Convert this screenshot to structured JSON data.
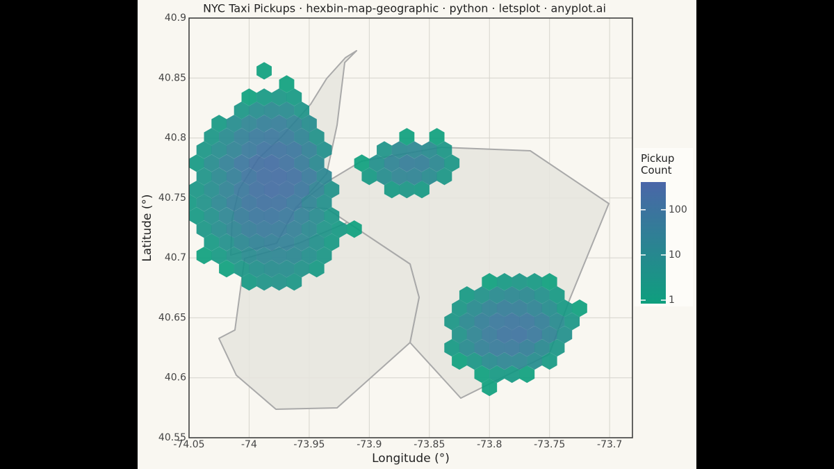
{
  "chart_data": {
    "type": "hexbin",
    "title": "NYC Taxi Pickups · hexbin-map-geographic · python · letsplot · anyplot.ai",
    "x_label": "Longitude (°)",
    "y_label": "Latitude (°)",
    "legend_title": "Pickup Count",
    "xlim": [
      -74.05,
      -73.681
    ],
    "ylim": [
      40.55,
      40.9
    ],
    "xticks": [
      -74.05,
      -74,
      -73.95,
      -73.9,
      -73.85,
      -73.8,
      -73.75,
      -73.7
    ],
    "yticks": [
      40.55,
      40.6,
      40.65,
      40.7,
      40.75,
      40.8,
      40.85,
      40.9
    ],
    "grid": true,
    "color_scale": "log",
    "clim": [
      1,
      410
    ],
    "colormap": [
      "#0e9f7e",
      "#4a66a8"
    ],
    "cticks": [
      1,
      10,
      100
    ],
    "rows": [
      {
        "y": 40.592,
        "x": [
          -73.8
        ],
        "values": [
          1
        ]
      },
      {
        "y": 40.603,
        "x": [
          -73.80625,
          -73.79375,
          -73.78125,
          -73.76875
        ],
        "values": [
          1,
          2,
          2,
          1
        ]
      },
      {
        "y": 40.614,
        "x": [
          -73.825,
          -73.8125,
          -73.8,
          -73.7875,
          -73.775,
          -73.7625,
          -73.75
        ],
        "values": [
          1,
          3,
          10,
          18,
          16,
          8,
          2
        ]
      },
      {
        "y": 40.625,
        "x": [
          -73.83125,
          -73.81875,
          -73.80625,
          -73.79375,
          -73.78125,
          -73.76875,
          -73.75625,
          -73.74375
        ],
        "values": [
          2,
          10,
          30,
          55,
          60,
          35,
          12,
          3
        ]
      },
      {
        "y": 40.636,
        "x": [
          -73.825,
          -73.8125,
          -73.8,
          -73.7875,
          -73.775,
          -73.7625,
          -73.75,
          -73.7375
        ],
        "values": [
          5,
          20,
          55,
          100,
          110,
          70,
          25,
          6
        ]
      },
      {
        "y": 40.647,
        "x": [
          -73.83125,
          -73.81875,
          -73.80625,
          -73.79375,
          -73.78125,
          -73.76875,
          -73.75625,
          -73.74375,
          -73.73125
        ],
        "values": [
          3,
          12,
          35,
          70,
          90,
          75,
          35,
          10,
          3
        ]
      },
      {
        "y": 40.658,
        "x": [
          -73.825,
          -73.8125,
          -73.8,
          -73.7875,
          -73.775,
          -73.7625,
          -73.75,
          -73.7375,
          -73.725
        ],
        "values": [
          3,
          10,
          25,
          40,
          38,
          22,
          8,
          2,
          1
        ]
      },
      {
        "y": 40.669,
        "x": [
          -73.81875,
          -73.80625,
          -73.79375,
          -73.78125,
          -73.76875,
          -73.75625,
          -73.74375
        ],
        "values": [
          2,
          5,
          10,
          14,
          12,
          6,
          2
        ]
      },
      {
        "y": 40.68,
        "x": [
          -74.0,
          -73.9875,
          -73.975,
          -73.9625,
          -73.8,
          -73.7875,
          -73.775,
          -73.7625,
          -73.75
        ],
        "values": [
          2,
          4,
          5,
          3,
          1,
          2,
          3,
          2,
          1
        ]
      },
      {
        "y": 40.691,
        "x": [
          -74.01875,
          -74.00625,
          -73.99375,
          -73.98125,
          -73.96875,
          -73.95625,
          -73.94375
        ],
        "values": [
          1,
          3,
          6,
          9,
          8,
          5,
          2
        ]
      },
      {
        "y": 40.702,
        "x": [
          -74.0375,
          -74.025,
          -74.0125,
          -74.0,
          -73.9875,
          -73.975,
          -73.9625,
          -73.95,
          -73.9375
        ],
        "values": [
          1,
          2,
          5,
          10,
          16,
          18,
          14,
          7,
          3
        ]
      },
      {
        "y": 40.713,
        "x": [
          -74.03125,
          -74.01875,
          -74.00625,
          -73.99375,
          -73.98125,
          -73.96875,
          -73.95625,
          -73.94375,
          -73.93125
        ],
        "values": [
          2,
          6,
          14,
          26,
          34,
          30,
          16,
          6,
          2
        ]
      },
      {
        "y": 40.724,
        "x": [
          -74.0375,
          -74.025,
          -74.0125,
          -74.0,
          -73.9875,
          -73.975,
          -73.9625,
          -73.95,
          -73.9375,
          -73.925,
          -73.9125
        ],
        "values": [
          3,
          8,
          20,
          40,
          60,
          55,
          32,
          12,
          4,
          2,
          1
        ]
      },
      {
        "y": 40.735,
        "x": [
          -74.04375,
          -74.03125,
          -74.01875,
          -74.00625,
          -73.99375,
          -73.98125,
          -73.96875,
          -73.95625,
          -73.94375,
          -73.93125
        ],
        "values": [
          2,
          6,
          18,
          45,
          80,
          95,
          70,
          30,
          10,
          3
        ]
      },
      {
        "y": 40.746,
        "x": [
          -74.05,
          -74.0375,
          -74.025,
          -74.0125,
          -74.0,
          -73.9875,
          -73.975,
          -73.9625,
          -73.95,
          -73.9375
        ],
        "values": [
          2,
          5,
          15,
          40,
          90,
          140,
          130,
          70,
          22,
          6
        ]
      },
      {
        "y": 40.757,
        "x": [
          -74.04375,
          -74.03125,
          -74.01875,
          -74.00625,
          -73.99375,
          -73.98125,
          -73.96875,
          -73.95625,
          -73.94375,
          -73.93125,
          -73.88125,
          -73.86875,
          -73.85625
        ],
        "values": [
          3,
          8,
          25,
          70,
          150,
          200,
          160,
          80,
          25,
          5,
          2,
          3,
          2
        ]
      },
      {
        "y": 40.768,
        "x": [
          -74.0375,
          -74.025,
          -74.0125,
          -74.0,
          -73.9875,
          -73.975,
          -73.9625,
          -73.95,
          -73.9375,
          -73.9,
          -73.8875,
          -73.875,
          -73.8625,
          -73.85,
          -73.8375
        ],
        "values": [
          4,
          12,
          35,
          100,
          180,
          210,
          150,
          60,
          15,
          2,
          8,
          20,
          22,
          10,
          3
        ]
      },
      {
        "y": 40.779,
        "x": [
          -74.04375,
          -74.03125,
          -74.01875,
          -74.00625,
          -73.99375,
          -73.98125,
          -73.96875,
          -73.95625,
          -73.94375,
          -73.90625,
          -73.89375,
          -73.88125,
          -73.86875,
          -73.85625,
          -73.84375,
          -73.83125
        ],
        "values": [
          2,
          9,
          30,
          80,
          160,
          190,
          130,
          50,
          12,
          1,
          6,
          22,
          40,
          35,
          14,
          3
        ]
      },
      {
        "y": 40.79,
        "x": [
          -74.0375,
          -74.025,
          -74.0125,
          -74.0,
          -73.9875,
          -73.975,
          -73.9625,
          -73.95,
          -73.9375,
          -73.8875,
          -73.875,
          -73.8625,
          -73.85,
          -73.8375
        ],
        "values": [
          3,
          8,
          25,
          60,
          110,
          120,
          80,
          30,
          6,
          4,
          12,
          16,
          10,
          3
        ]
      },
      {
        "y": 40.801,
        "x": [
          -74.03125,
          -74.01875,
          -74.00625,
          -73.99375,
          -73.98125,
          -73.96875,
          -73.95625,
          -73.94375,
          -73.86875,
          -73.84375
        ],
        "values": [
          3,
          10,
          30,
          60,
          75,
          55,
          22,
          5,
          1,
          1
        ]
      },
      {
        "y": 40.812,
        "x": [
          -74.025,
          -74.0125,
          -74.0,
          -73.9875,
          -73.975,
          -73.9625,
          -73.95
        ],
        "values": [
          2,
          8,
          20,
          35,
          40,
          25,
          8
        ]
      },
      {
        "y": 40.823,
        "x": [
          -74.00625,
          -73.99375,
          -73.98125,
          -73.96875,
          -73.95625
        ],
        "values": [
          3,
          8,
          12,
          10,
          4
        ]
      },
      {
        "y": 40.834,
        "x": [
          -74.0,
          -73.9875,
          -73.975,
          -73.9625
        ],
        "values": [
          1,
          2,
          3,
          2
        ]
      },
      {
        "y": 40.845,
        "x": [
          -73.96875
        ],
        "values": [
          1
        ]
      },
      {
        "y": 40.856,
        "x": [
          -73.9875
        ],
        "values": [
          1
        ]
      }
    ]
  }
}
